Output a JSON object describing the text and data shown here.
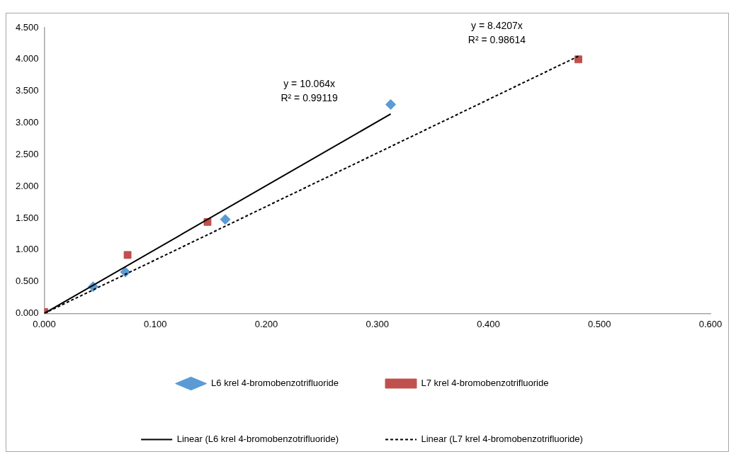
{
  "chart_data": {
    "type": "scatter",
    "series": [
      {
        "name": "L6 krel 4-bromobenzotrifluoride",
        "color": "#5b9bd5",
        "marker": "diamond",
        "x": [
          0.044,
          0.073,
          0.163,
          0.312
        ],
        "values": [
          0.42,
          0.65,
          1.48,
          3.29
        ]
      },
      {
        "name": "L7 krel 4-bromobenzotrifluoride",
        "color": "#c0504d",
        "marker": "square",
        "x": [
          0,
          0.075,
          0.147,
          0.481
        ],
        "values": [
          0.02,
          0.92,
          1.44,
          4.0
        ]
      },
      {
        "name": "Linear (L6 krel 4-bromobenzotrifluoride)",
        "type": "line",
        "color": "#000000",
        "line_style": "solid",
        "marker": "none",
        "x": [
          0,
          0.312
        ],
        "values": [
          0,
          3.14
        ]
      },
      {
        "name": "Linear (L7 krel 4-bromobenzotrifluoride)",
        "type": "line",
        "color": "#000000",
        "line_style": "dashed",
        "marker": "none",
        "x": [
          0,
          0.481
        ],
        "values": [
          0,
          4.05
        ]
      }
    ],
    "xlim": [
      0,
      0.6
    ],
    "ylim": [
      0,
      4.5
    ],
    "xticks": [
      {
        "value": 0,
        "label": "0.000"
      },
      {
        "value": 0.1,
        "label": "0.100"
      },
      {
        "value": 0.2,
        "label": "0.200"
      },
      {
        "value": 0.3,
        "label": "0.300"
      },
      {
        "value": 0.4,
        "label": "0.400"
      },
      {
        "value": 0.5,
        "label": "0.500"
      },
      {
        "value": 0.6,
        "label": "0.600"
      }
    ],
    "yticks": [
      {
        "value": 0,
        "label": "0.000"
      },
      {
        "value": 0.5,
        "label": "0.500"
      },
      {
        "value": 1,
        "label": "1.000"
      },
      {
        "value": 1.5,
        "label": "1.500"
      },
      {
        "value": 2,
        "label": "2.000"
      },
      {
        "value": 2.5,
        "label": "2.500"
      },
      {
        "value": 3,
        "label": "3.000"
      },
      {
        "value": 3.5,
        "label": "3.500"
      },
      {
        "value": 4,
        "label": "4.000"
      },
      {
        "value": 4.5,
        "label": "4.500"
      }
    ],
    "grid": false,
    "legend": "bottom",
    "annotations": [
      "y = 10.064x",
      "R² = 0.99119",
      "y = 8.4207x",
      "R² = 0.98614"
    ]
  }
}
